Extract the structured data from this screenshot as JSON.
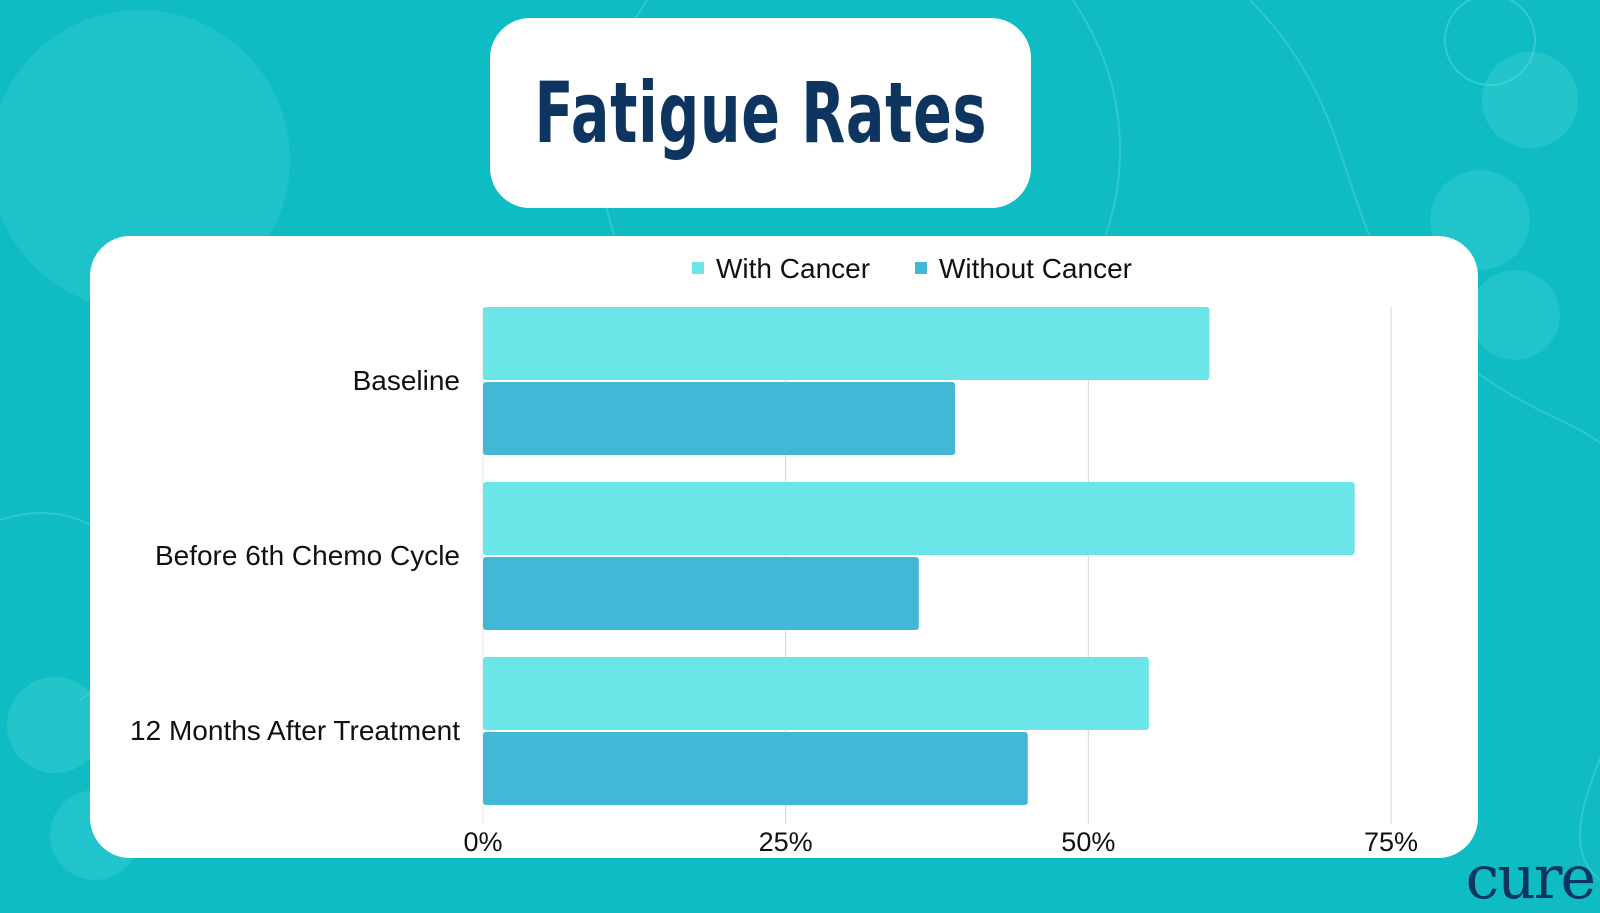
{
  "brand": {
    "logo_text": "CURE",
    "logo_color": "#0d3560"
  },
  "colors": {
    "background": "#0fbcc3",
    "card": "#ffffff",
    "title": "#0d3560"
  },
  "chart_data": {
    "type": "bar",
    "orientation": "horizontal",
    "title": "Fatigue Rates",
    "categories": [
      "Baseline",
      "Before 6th Chemo Cycle",
      "12 Months After Treatment"
    ],
    "series": [
      {
        "name": "With Cancer",
        "color": "#6be5e8",
        "values": [
          60,
          72,
          55
        ]
      },
      {
        "name": "Without Cancer",
        "color": "#42b8d6",
        "values": [
          39,
          36,
          45
        ]
      }
    ],
    "xlim": [
      0,
      75
    ],
    "ticks": [
      0,
      25,
      50,
      75
    ],
    "tick_labels": [
      "0%",
      "25%",
      "50%",
      "75%"
    ],
    "grid": "vertical",
    "legend": "top-center",
    "xlabel": "",
    "ylabel": ""
  }
}
